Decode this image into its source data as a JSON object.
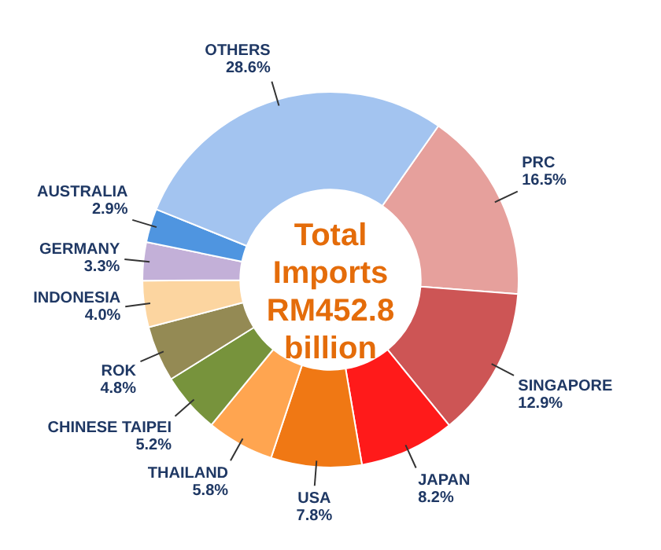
{
  "chart_data": {
    "type": "donut",
    "title": "Total Imports RM452.8 billion",
    "categories": [
      "PRC",
      "SINGAPORE",
      "JAPAN",
      "USA",
      "THAILAND",
      "CHINESE TAIPEI",
      "ROK",
      "INDONESIA",
      "GERMANY",
      "AUSTRALIA",
      "OTHERS"
    ],
    "values": [
      16.5,
      12.9,
      8.2,
      7.8,
      5.8,
      5.2,
      4.8,
      4.0,
      3.3,
      2.9,
      28.6
    ],
    "value_labels": [
      "16.5%",
      "12.9%",
      "8.2%",
      "7.8%",
      "5.8%",
      "5.2%",
      "4.8%",
      "4.0%",
      "3.3%",
      "2.9%",
      "28.6%"
    ],
    "colors": [
      "#e6a09c",
      "#cd5555",
      "#ff1a1a",
      "#f07814",
      "#ffa550",
      "#77933c",
      "#948a54",
      "#fcd5a0",
      "#c3b0d8",
      "#4f95e0",
      "#a3c4f0"
    ],
    "legend": false
  }
}
